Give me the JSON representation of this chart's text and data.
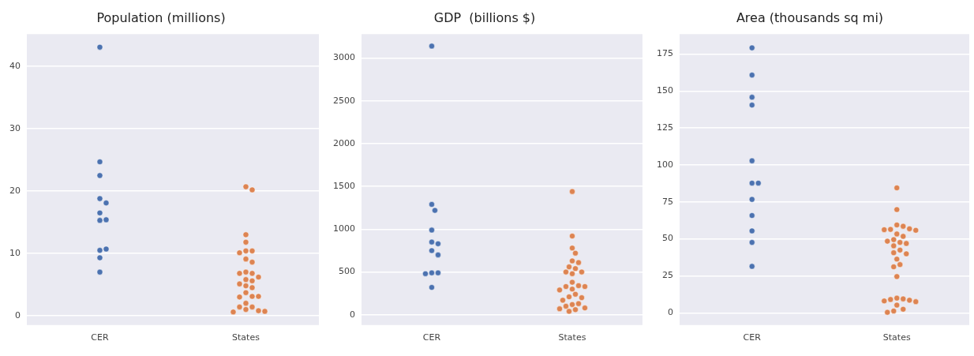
{
  "chart_data": [
    {
      "type": "scatter",
      "title": "Population (millions)",
      "categories": [
        "CER",
        "States"
      ],
      "ylim": [
        -1.5,
        45.2
      ],
      "yticks": [
        0,
        10,
        20,
        30,
        40
      ],
      "grid": "y",
      "legend": false,
      "marker": "circle",
      "series": [
        {
          "color": "#4c72b0",
          "x": [
            "CER",
            "CER",
            "CER",
            "CER",
            "CER",
            "CER",
            "CER",
            "CER",
            "CER",
            "CER",
            "CER",
            "CER"
          ],
          "values": [
            43.1,
            24.7,
            22.5,
            18.8,
            18.1,
            16.5,
            15.3,
            15.4,
            10.5,
            10.7,
            9.3,
            7.0
          ]
        },
        {
          "color": "#dd8452",
          "x": [
            "States",
            "States",
            "States",
            "States",
            "States",
            "States",
            "States",
            "States",
            "States",
            "States",
            "States",
            "States",
            "States",
            "States",
            "States",
            "States",
            "States",
            "States",
            "States",
            "States",
            "States",
            "States",
            "States",
            "States",
            "States",
            "States",
            "States",
            "States",
            "States"
          ],
          "values": [
            20.7,
            20.2,
            13.0,
            11.8,
            10.4,
            10.4,
            10.1,
            9.1,
            8.6,
            7.0,
            6.8,
            6.8,
            6.2,
            5.8,
            5.6,
            5.1,
            4.8,
            4.5,
            3.7,
            3.1,
            3.0,
            3.1,
            2.0,
            1.4,
            1.4,
            1.0,
            0.8,
            0.6,
            0.7
          ]
        }
      ]
    },
    {
      "type": "scatter",
      "title": "GDP  (billions $)",
      "categories": [
        "CER",
        "States"
      ],
      "ylim": [
        -120,
        3280
      ],
      "yticks": [
        0,
        500,
        1000,
        1500,
        2000,
        2500,
        3000
      ],
      "grid": "y",
      "legend": false,
      "marker": "circle",
      "series": [
        {
          "color": "#4c72b0",
          "x": [
            "CER",
            "CER",
            "CER",
            "CER",
            "CER",
            "CER",
            "CER",
            "CER",
            "CER",
            "CER",
            "CER",
            "CER"
          ],
          "values": [
            3140,
            1290,
            1220,
            990,
            850,
            830,
            750,
            700,
            490,
            490,
            480,
            320
          ]
        },
        {
          "color": "#dd8452",
          "x": [
            "States",
            "States",
            "States",
            "States",
            "States",
            "States",
            "States",
            "States",
            "States",
            "States",
            "States",
            "States",
            "States",
            "States",
            "States",
            "States",
            "States",
            "States",
            "States",
            "States",
            "States",
            "States",
            "States",
            "States",
            "States",
            "States",
            "States",
            "States"
          ],
          "values": [
            1440,
            920,
            780,
            720,
            630,
            610,
            560,
            540,
            500,
            500,
            480,
            380,
            340,
            330,
            330,
            300,
            290,
            240,
            210,
            200,
            170,
            120,
            130,
            100,
            80,
            70,
            60,
            40
          ]
        }
      ]
    },
    {
      "type": "scatter",
      "title": "Area (thousands sq mi)",
      "categories": [
        "CER",
        "States"
      ],
      "ylim": [
        -8.3,
        188.5
      ],
      "yticks": [
        0,
        25,
        50,
        75,
        100,
        125,
        150,
        175
      ],
      "grid": "y",
      "legend": false,
      "marker": "circle",
      "series": [
        {
          "color": "#4c72b0",
          "x": [
            "CER",
            "CER",
            "CER",
            "CER",
            "CER",
            "CER",
            "CER",
            "CER",
            "CER",
            "CER",
            "CER",
            "CER"
          ],
          "values": [
            179.2,
            160.8,
            145.8,
            140.5,
            102.8,
            87.7,
            87.7,
            76.7,
            65.8,
            55.4,
            47.6,
            31.4
          ]
        },
        {
          "color": "#dd8452",
          "x": [
            "States",
            "States",
            "States",
            "States",
            "States",
            "States",
            "States",
            "States",
            "States",
            "States",
            "States",
            "States",
            "States",
            "States",
            "States",
            "States",
            "States",
            "States",
            "States",
            "States",
            "States",
            "States",
            "States",
            "States",
            "States",
            "States",
            "States",
            "States",
            "States",
            "States",
            "States",
            "States"
          ],
          "values": [
            84.5,
            69.8,
            59.4,
            58.5,
            56.4,
            56.8,
            56.2,
            55.8,
            53.3,
            51.7,
            49.5,
            48.4,
            47.6,
            46.9,
            45.3,
            42.4,
            40.6,
            39.9,
            36.3,
            32.6,
            31.1,
            24.5,
            9.9,
            9.4,
            9.0,
            8.5,
            8.0,
            7.5,
            5.2,
            2.4,
            1.2,
            0.3
          ]
        }
      ]
    }
  ]
}
